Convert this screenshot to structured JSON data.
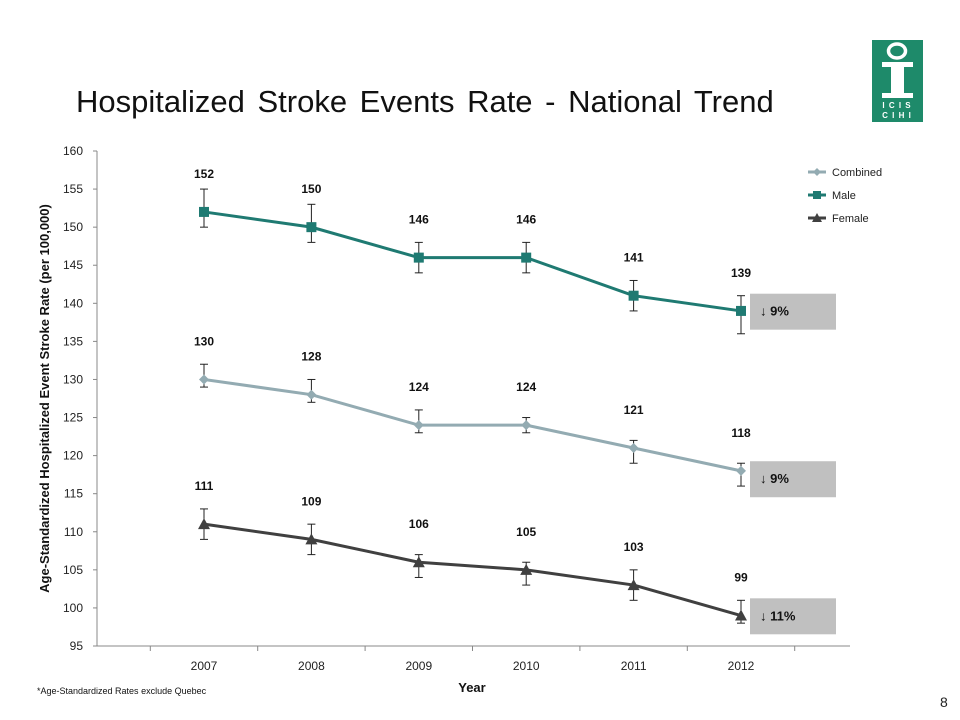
{
  "slide": {
    "title": "Hospitalized Stroke Events Rate - National Trend",
    "footnote": "*Age-Standardized Rates exclude Quebec",
    "page_number": "8",
    "logo": {
      "letters_top": "I C I S",
      "letters_bottom": "C I H I",
      "color": "#1e8a6a"
    }
  },
  "chart_data": {
    "type": "line",
    "title": "",
    "xlabel": "Year",
    "ylabel": "Age-Standardized Hospitalized Event Stroke Rate (per 100,000)",
    "x": [
      "2007",
      "2008",
      "2009",
      "2010",
      "2011",
      "2012"
    ],
    "ylim": [
      95,
      160
    ],
    "ytick_step": 5,
    "grid": false,
    "legend_position": "top-right",
    "series": [
      {
        "name": "Combined",
        "color": "#93abb2",
        "marker": "diamond",
        "values": [
          130,
          128,
          124,
          124,
          121,
          118
        ],
        "err_low": [
          129,
          127,
          123,
          123,
          119,
          116
        ],
        "err_high": [
          132,
          130,
          126,
          125,
          122,
          119
        ],
        "change_label": "↓ 9%"
      },
      {
        "name": "Male",
        "color": "#1f7a72",
        "marker": "square",
        "values": [
          152,
          150,
          146,
          146,
          141,
          139
        ],
        "err_low": [
          150,
          148,
          144,
          144,
          139,
          136
        ],
        "err_high": [
          155,
          153,
          148,
          148,
          143,
          141
        ],
        "change_label": "↓ 9%"
      },
      {
        "name": "Female",
        "color": "#404040",
        "marker": "triangle",
        "values": [
          111,
          109,
          106,
          105,
          103,
          99
        ],
        "err_low": [
          109,
          107,
          104,
          103,
          101,
          98
        ],
        "err_high": [
          113,
          111,
          107,
          106,
          105,
          101
        ],
        "change_label": "↓ 11%"
      }
    ]
  }
}
